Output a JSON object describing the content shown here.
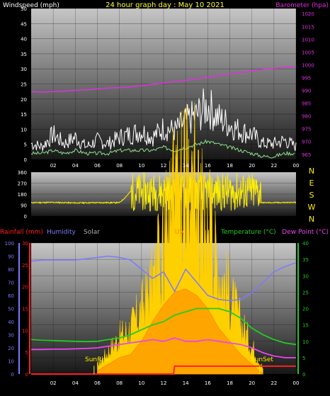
{
  "title": "24 hour graph day : May 10 2021",
  "colors": {
    "title": "#ffff33",
    "wind_gust": "#ffffff",
    "wind_avg": "#8ee08e",
    "barometer": "#e030e0",
    "direction": "#ffee00",
    "rain": "#ff2020",
    "humidity": "#7a7aff",
    "solar": "#ffd000",
    "uv": "#ff8800",
    "temperature": "#22cc22",
    "dewpoint": "#ee44ee",
    "sun_marker": "#ffee00"
  },
  "chart_data": [
    {
      "type": "line",
      "name": "wind-barometer",
      "ylabel_left": "Windspeed (mph)",
      "ylabel_right": "Barometer (hpa)",
      "x_ticks": [
        "02",
        "04",
        "06",
        "08",
        "10",
        "12",
        "14",
        "16",
        "18",
        "20",
        "22",
        "00"
      ],
      "y_left_ticks": [
        0,
        5,
        10,
        15,
        20,
        25,
        30,
        35,
        40,
        45,
        50
      ],
      "y_right_ticks": [
        965,
        970,
        975,
        980,
        985,
        990,
        995,
        1000,
        1005,
        1010,
        1015,
        1020
      ],
      "y_left_range": [
        0,
        50
      ],
      "y_right_range": [
        963,
        1022
      ],
      "x_range": [
        0,
        24
      ],
      "series": [
        {
          "key": "gust",
          "x": [
            0,
            1,
            2,
            3,
            4,
            5,
            6,
            7,
            8,
            9,
            10,
            11,
            12,
            13,
            14,
            15,
            16,
            17,
            18,
            19,
            20,
            21,
            22,
            23,
            24
          ],
          "values": [
            5,
            4,
            8,
            5,
            7,
            4,
            6,
            5,
            7,
            8,
            9,
            7,
            10,
            9,
            12,
            14,
            17,
            13,
            11,
            9,
            8,
            5,
            5,
            6,
            4
          ]
        },
        {
          "key": "avg",
          "x": [
            0,
            1,
            2,
            3,
            4,
            5,
            6,
            7,
            8,
            9,
            10,
            11,
            12,
            13,
            14,
            15,
            16,
            17,
            18,
            19,
            20,
            21,
            22,
            23,
            24
          ],
          "values": [
            2,
            2,
            3,
            2,
            3,
            2,
            2,
            2,
            3,
            3,
            3,
            3,
            4,
            3,
            4,
            5,
            6,
            5,
            4,
            3,
            2,
            1,
            1,
            2,
            2
          ]
        },
        {
          "key": "barometer",
          "x": [
            0,
            1,
            2,
            3,
            4,
            5,
            6,
            7,
            8,
            9,
            10,
            11,
            12,
            13,
            14,
            15,
            16,
            17,
            18,
            19,
            20,
            21,
            22,
            23,
            24
          ],
          "values": [
            989.5,
            989.3,
            989.5,
            989.7,
            990,
            990.2,
            990.6,
            990.9,
            991.1,
            991.3,
            991.8,
            992.4,
            992.9,
            993.4,
            993.9,
            994.5,
            995.1,
            995.8,
            996.4,
            997,
            997.6,
            998.2,
            998.6,
            999,
            999.2
          ]
        }
      ]
    },
    {
      "type": "line",
      "name": "wind-direction",
      "y_left_ticks": [
        0,
        90,
        180,
        270,
        360
      ],
      "y_right_labels": [
        "N",
        "W",
        "S",
        "E",
        "N"
      ],
      "y_range": [
        0,
        360
      ],
      "x_range": [
        0,
        24
      ],
      "series": [
        {
          "key": "direction",
          "x": [
            0,
            2,
            4,
            6,
            8,
            8.5,
            9.5,
            10.5,
            11.5,
            12.5,
            13.5,
            14.5,
            15.5,
            16.5,
            17.5,
            18.5,
            19.5,
            20.5,
            21,
            22,
            24
          ],
          "values": [
            110,
            112,
            108,
            110,
            110,
            150,
            250,
            120,
            270,
            160,
            290,
            120,
            300,
            140,
            310,
            180,
            280,
            120,
            110,
            110,
            112
          ]
        }
      ]
    },
    {
      "type": "area",
      "name": "solar-temperature",
      "labels": {
        "rainfall": "Rainfall (mm)",
        "humidity": "Humidity",
        "solar": "Solar",
        "uv": "UV",
        "temperature": "Temperature (°C)",
        "dewpoint": "Dew Point (°C)"
      },
      "sunrise_label": "SunRise",
      "sunset_label": "SunSet",
      "sunrise_hour": 5.7,
      "sunset_hour": 20.7,
      "x_ticks": [
        "02",
        "04",
        "06",
        "08",
        "10",
        "12",
        "14",
        "16",
        "18",
        "20",
        "22",
        "00"
      ],
      "y_humidity_ticks": [
        0,
        10,
        20,
        30,
        40,
        50,
        60,
        70,
        80,
        90,
        100
      ],
      "y_rain_ticks": [
        0,
        5,
        10,
        15,
        20,
        25,
        30
      ],
      "y_temp_ticks": [
        0,
        5,
        10,
        15,
        20,
        25,
        30,
        35,
        40
      ],
      "humidity_range": [
        0,
        100
      ],
      "rain_range": [
        0,
        30
      ],
      "temp_range": [
        0,
        40
      ],
      "x_range": [
        0,
        24
      ],
      "series": [
        {
          "key": "humidity",
          "x": [
            0,
            1,
            2,
            3,
            4,
            5,
            6,
            7,
            8,
            9,
            10,
            11,
            12,
            13,
            14,
            15,
            16,
            17,
            18,
            19,
            20,
            21,
            22,
            23,
            24
          ],
          "values": [
            86,
            87,
            87,
            87,
            87,
            88,
            89,
            90,
            89,
            87,
            80,
            73,
            78,
            63,
            80,
            70,
            60,
            57,
            56,
            57,
            62,
            70,
            78,
            82,
            85
          ]
        },
        {
          "key": "temperature",
          "x": [
            0,
            1,
            2,
            3,
            4,
            5,
            6,
            7,
            8,
            9,
            10,
            11,
            12,
            13,
            14,
            15,
            16,
            17,
            18,
            19,
            20,
            21,
            22,
            23,
            24
          ],
          "values": [
            10.5,
            10.3,
            10.2,
            10.1,
            10,
            9.9,
            10,
            10.5,
            11,
            12,
            13.5,
            15,
            16,
            18,
            19,
            20,
            20,
            20,
            19,
            17,
            14,
            12,
            10.5,
            9.5,
            9
          ]
        },
        {
          "key": "dewpoint",
          "x": [
            0,
            1,
            2,
            3,
            4,
            5,
            6,
            7,
            8,
            9,
            10,
            11,
            12,
            13,
            14,
            15,
            16,
            17,
            18,
            19,
            20,
            21,
            22,
            23,
            24
          ],
          "values": [
            7.5,
            7.5,
            7.6,
            7.6,
            7.7,
            7.8,
            8,
            8.5,
            9,
            9.5,
            10,
            10.5,
            10,
            11,
            10,
            10,
            10.5,
            10,
            9.5,
            9,
            8,
            6.5,
            5.5,
            5,
            5
          ]
        },
        {
          "key": "rain_total",
          "x": [
            0,
            12.9,
            13,
            24
          ],
          "values": [
            0,
            0,
            1.8,
            1.8
          ]
        },
        {
          "key": "solar",
          "x": [
            6,
            7,
            8,
            9,
            10,
            11,
            12,
            13,
            14,
            15,
            16,
            17,
            18,
            19,
            20,
            21
          ],
          "values": [
            3,
            8,
            13,
            16,
            23,
            33,
            45,
            57,
            66,
            58,
            50,
            38,
            28,
            18,
            10,
            2
          ]
        },
        {
          "key": "uv",
          "x": [
            6,
            7,
            8,
            9,
            10,
            11,
            12,
            13,
            14,
            15,
            16,
            17,
            18,
            19,
            20,
            21
          ],
          "values": [
            1,
            3,
            5,
            6,
            10,
            16,
            21,
            25,
            26,
            24,
            20,
            14,
            10,
            6,
            3,
            0
          ]
        }
      ]
    }
  ]
}
